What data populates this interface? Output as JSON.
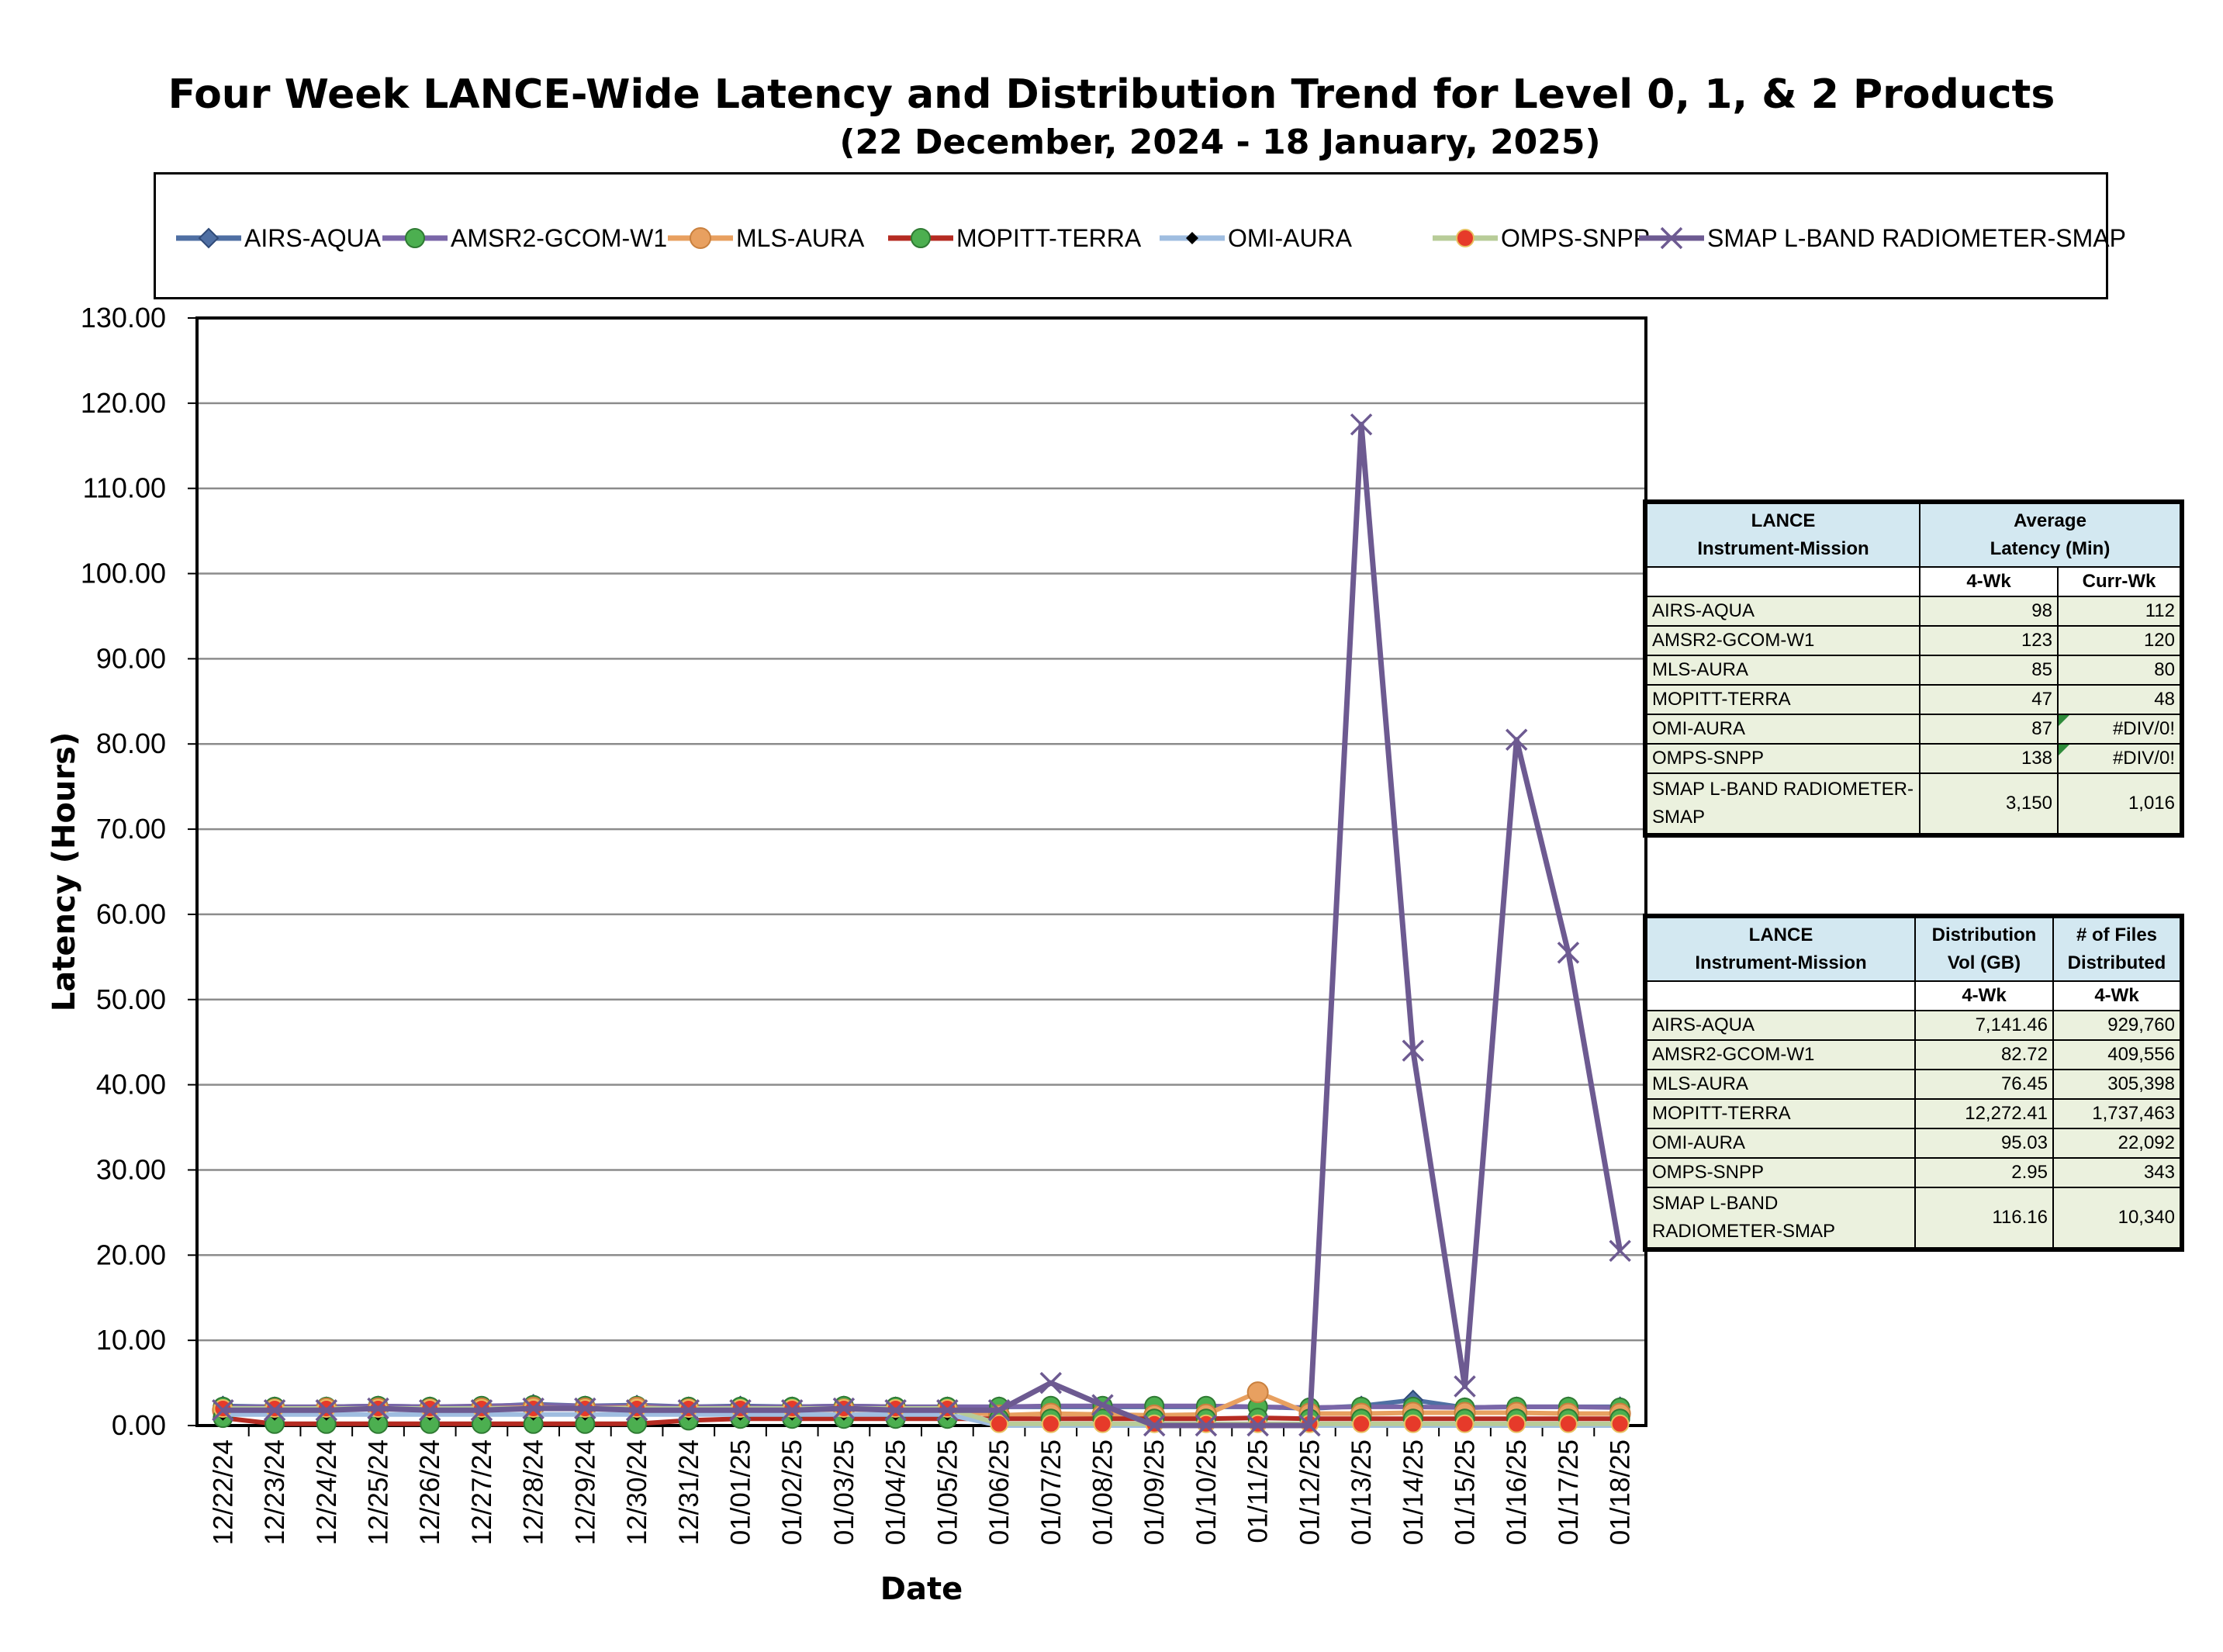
{
  "chart_data": {
    "type": "line",
    "title": "Four Week LANCE-Wide Latency and Distribution Trend for Level 0, 1, & 2 Products",
    "subtitle": "(22  December,  2024  -  18  January, 2025)",
    "xlabel": "Date",
    "ylabel": "Latency (Hours)",
    "ylim": [
      0,
      130
    ],
    "yticks": [
      "0.00",
      "10.00",
      "20.00",
      "30.00",
      "40.00",
      "50.00",
      "60.00",
      "70.00",
      "80.00",
      "90.00",
      "100.00",
      "110.00",
      "120.00",
      "130.00"
    ],
    "grid": true,
    "legend_position": "top",
    "categories": [
      "12/22/24",
      "12/23/24",
      "12/24/24",
      "12/25/24",
      "12/26/24",
      "12/27/24",
      "12/28/24",
      "12/29/24",
      "12/30/24",
      "12/31/24",
      "01/01/25",
      "01/02/25",
      "01/03/25",
      "01/04/25",
      "01/05/25",
      "01/06/25",
      "01/07/25",
      "01/08/25",
      "01/09/25",
      "01/10/25",
      "01/11/25",
      "01/12/25",
      "01/13/25",
      "01/14/25",
      "01/15/25",
      "01/16/25",
      "01/17/25",
      "01/18/25"
    ],
    "series": [
      {
        "name": "AIRS-AQUA",
        "color": "#4f6fa3",
        "marker": "diamond",
        "values": [
          2.3,
          2.2,
          2.2,
          2.3,
          2.2,
          2.2,
          2.5,
          2.3,
          2.4,
          2.2,
          2.3,
          2.2,
          2.3,
          2.2,
          2.2,
          2.2,
          2.2,
          2.2,
          2.2,
          2.2,
          2.2,
          2.0,
          2.3,
          3.0,
          2.1,
          2.2,
          2.2,
          2.2
        ]
      },
      {
        "name": "AMSR2-GCOM-W1",
        "color": "#7a66a8",
        "marker": "circle-green",
        "values": [
          2.2,
          2.2,
          2.2,
          2.3,
          2.2,
          2.3,
          2.4,
          2.3,
          2.3,
          2.2,
          2.2,
          2.2,
          2.3,
          2.2,
          2.2,
          2.2,
          2.3,
          2.3,
          2.3,
          2.3,
          2.2,
          2.1,
          2.2,
          2.2,
          2.1,
          2.2,
          2.2,
          2.1
        ]
      },
      {
        "name": "MLS-AURA",
        "color": "#e8a060",
        "marker": "circle-orange",
        "values": [
          1.8,
          1.9,
          2.0,
          2.0,
          1.9,
          2.0,
          2.1,
          2.0,
          2.1,
          1.9,
          1.8,
          1.8,
          1.9,
          1.8,
          1.8,
          1.2,
          1.4,
          1.3,
          1.2,
          1.3,
          3.9,
          1.4,
          1.4,
          1.5,
          1.5,
          1.5,
          1.4,
          1.4
        ]
      },
      {
        "name": "MOPITT-TERRA",
        "color": "#b52b22",
        "marker": "circle-green",
        "values": [
          0.9,
          0.2,
          0.2,
          0.2,
          0.2,
          0.2,
          0.2,
          0.2,
          0.2,
          0.6,
          0.8,
          0.8,
          0.8,
          0.8,
          0.8,
          0.8,
          0.8,
          0.8,
          0.8,
          0.8,
          0.9,
          0.8,
          0.8,
          0.8,
          0.8,
          0.8,
          0.8,
          0.8
        ]
      },
      {
        "name": "OMI-AURA",
        "color": "#9fbde0",
        "marker": "diamond-black",
        "values": [
          1.3,
          1.3,
          1.3,
          1.3,
          1.3,
          1.3,
          1.3,
          1.3,
          1.3,
          1.3,
          1.3,
          1.3,
          1.3,
          1.3,
          1.3,
          0.0,
          0.0,
          0.0,
          0.0,
          0.0,
          0.0,
          0.0,
          0.0,
          0.0,
          0.0,
          0.0,
          0.0,
          0.0
        ]
      },
      {
        "name": "OMPS-SNPP",
        "color": "#b8cc98",
        "marker": "circle-red",
        "values": [
          2.0,
          2.0,
          2.0,
          2.0,
          2.0,
          2.0,
          2.0,
          2.0,
          2.0,
          2.0,
          2.0,
          2.0,
          2.0,
          2.0,
          2.0,
          0.2,
          0.2,
          0.2,
          0.2,
          0.2,
          0.2,
          0.2,
          0.2,
          0.2,
          0.2,
          0.2,
          0.2,
          0.2
        ]
      },
      {
        "name": "SMAP L-BAND RADIOMETER-SMAP",
        "color": "#6d5a91",
        "marker": "x",
        "values": [
          1.8,
          1.8,
          1.8,
          2.0,
          1.8,
          1.8,
          2.0,
          2.0,
          1.8,
          1.8,
          1.8,
          1.8,
          2.0,
          1.8,
          1.8,
          1.8,
          5.0,
          2.4,
          0.0,
          0.0,
          0.0,
          0.0,
          117.5,
          44.0,
          4.6,
          80.5,
          55.5,
          20.5
        ]
      }
    ]
  },
  "latency_table": {
    "header": {
      "col1_line1": "LANCE",
      "col1_line2": "Instrument-Mission",
      "col2_line1": "Average",
      "col2_line2": "Latency (Min)",
      "sub1": "4-Wk",
      "sub2": "Curr-Wk"
    },
    "rows": [
      {
        "name": "AIRS-AQUA",
        "wk4": "98",
        "curr": "112"
      },
      {
        "name": "AMSR2-GCOM-W1",
        "wk4": "123",
        "curr": "120"
      },
      {
        "name": "MLS-AURA",
        "wk4": "85",
        "curr": "80"
      },
      {
        "name": "MOPITT-TERRA",
        "wk4": "47",
        "curr": "48"
      },
      {
        "name": "OMI-AURA",
        "wk4": "87",
        "curr": "#DIV/0!"
      },
      {
        "name": "OMPS-SNPP",
        "wk4": "138",
        "curr": "#DIV/0!"
      },
      {
        "name": "SMAP L-BAND RADIOMETER-SMAP",
        "wk4": "3,150",
        "curr": "1,016"
      }
    ]
  },
  "distribution_table": {
    "header": {
      "col1_line1": "LANCE",
      "col1_line2": "Instrument-Mission",
      "col2_line1": "Distribution",
      "col2_line2": "Vol (GB)",
      "col3_line1": "# of Files",
      "col3_line2": "Distributed",
      "sub1": "4-Wk",
      "sub2": "4-Wk"
    },
    "rows": [
      {
        "name": "AIRS-AQUA",
        "vol": "7,141.46",
        "files": "929,760"
      },
      {
        "name": "AMSR2-GCOM-W1",
        "vol": "82.72",
        "files": "409,556"
      },
      {
        "name": "MLS-AURA",
        "vol": "76.45",
        "files": "305,398"
      },
      {
        "name": "MOPITT-TERRA",
        "vol": "12,272.41",
        "files": "1,737,463"
      },
      {
        "name": "OMI-AURA",
        "vol": "95.03",
        "files": "22,092"
      },
      {
        "name": "OMPS-SNPP",
        "vol": "2.95",
        "files": "343"
      },
      {
        "name": "SMAP L-BAND RADIOMETER-SMAP",
        "vol": "116.16",
        "files": "10,340"
      }
    ]
  }
}
